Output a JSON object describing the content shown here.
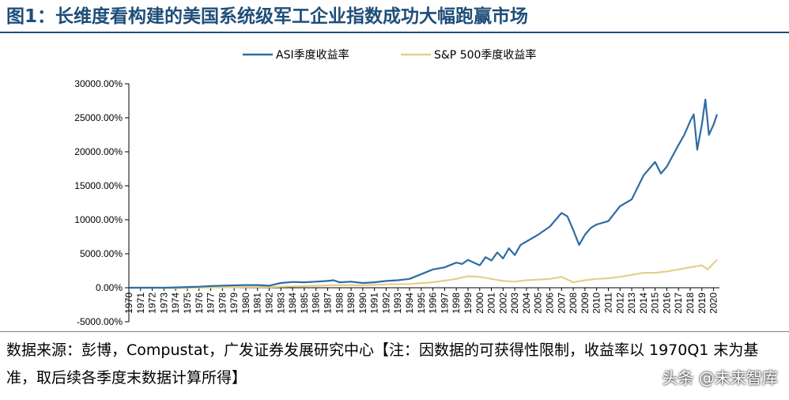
{
  "figure": {
    "title": "图1：长维度看构建的美国系统级军工企业指数成功大幅跑赢市场",
    "source": "数据来源：彭博，Compustat，广发证券发展研究中心【注：因数据的可获得性限制，收益率以 1970Q1 末为基准，取后续各季度末数据计算所得】",
    "watermark": "头条 @未来智库"
  },
  "chart_data": {
    "type": "line",
    "title": "",
    "xlabel": "",
    "ylabel": "",
    "ylim": [
      -5000,
      30000
    ],
    "y_ticks": [
      -5000,
      0,
      5000,
      10000,
      15000,
      20000,
      25000,
      30000
    ],
    "y_tick_labels": [
      "-5000.00%",
      "0.00%",
      "5000.00%",
      "10000.00%",
      "15000.00%",
      "20000.00%",
      "25000.00%",
      "30000.00%"
    ],
    "x_tick_labels": [
      "1970",
      "1971",
      "1972",
      "1973",
      "1974",
      "1975",
      "1976",
      "1977",
      "1978",
      "1979",
      "1980",
      "1981",
      "1982",
      "1983",
      "1984",
      "1985",
      "1986",
      "1987",
      "1988",
      "1989",
      "1990",
      "1991",
      "1992",
      "1993",
      "1994",
      "1995",
      "1996",
      "1997",
      "1998",
      "1999",
      "2000",
      "2001",
      "2002",
      "2003",
      "2004",
      "2005",
      "2006",
      "2007",
      "2008",
      "2009",
      "2010",
      "2011",
      "2012",
      "2013",
      "2014",
      "2015",
      "2016",
      "2017",
      "2018",
      "2019",
      "2020"
    ],
    "xlim": [
      1970,
      2020.5
    ],
    "grid": false,
    "legend_position": "top-center",
    "series": [
      {
        "name": "ASI季度收益率",
        "color": "#2e6ca4",
        "x": [
          1970,
          1971,
          1972,
          1973,
          1974,
          1975,
          1976,
          1977,
          1978,
          1979,
          1980,
          1981,
          1982,
          1982.5,
          1983,
          1984,
          1985,
          1986,
          1987,
          1987.5,
          1988,
          1989,
          1990,
          1991,
          1992,
          1993,
          1994,
          1995,
          1996,
          1997,
          1998,
          1998.5,
          1999,
          1999.5,
          2000,
          2000.5,
          2001,
          2001.5,
          2002,
          2002.5,
          2003,
          2003.5,
          2004,
          2005,
          2006,
          2007,
          2007.5,
          2008,
          2008.5,
          2009,
          2009.5,
          2010,
          2011,
          2012,
          2013,
          2014,
          2014.5,
          2015,
          2015.5,
          2016,
          2017,
          2017.5,
          2018,
          2018.3,
          2018.6,
          2019,
          2019.3,
          2019.6,
          2020,
          2020.3
        ],
        "values": [
          0,
          0,
          0,
          0,
          50,
          100,
          150,
          250,
          300,
          350,
          400,
          400,
          300,
          500,
          700,
          850,
          800,
          900,
          1000,
          1100,
          800,
          900,
          700,
          800,
          1000,
          1100,
          1300,
          2000,
          2700,
          3000,
          3700,
          3500,
          4100,
          3700,
          3300,
          4500,
          4000,
          5200,
          4300,
          5800,
          4800,
          6300,
          6800,
          7800,
          9000,
          11000,
          10500,
          8500,
          6300,
          7800,
          8800,
          9300,
          9800,
          12000,
          13000,
          16500,
          17500,
          18500,
          16800,
          17800,
          21000,
          22500,
          24500,
          25500,
          20300,
          24000,
          27700,
          22500,
          24000,
          25500
        ]
      },
      {
        "name": "S&P 500季度收益率",
        "color": "#e6cf8a",
        "x": [
          1970,
          1972,
          1974,
          1976,
          1978,
          1980,
          1982,
          1984,
          1986,
          1988,
          1990,
          1992,
          1994,
          1996,
          1998,
          1999,
          2000,
          2001,
          2002,
          2003,
          2004,
          2005,
          2006,
          2007,
          2008,
          2009,
          2010,
          2011,
          2012,
          2013,
          2014,
          2015,
          2016,
          2017,
          2018,
          2019,
          2019.5,
          2020,
          2020.3
        ],
        "values": [
          0,
          20,
          -50,
          20,
          40,
          100,
          100,
          200,
          300,
          400,
          350,
          500,
          550,
          800,
          1300,
          1700,
          1600,
          1300,
          1000,
          900,
          1100,
          1200,
          1300,
          1600,
          800,
          1100,
          1300,
          1400,
          1600,
          1900,
          2200,
          2200,
          2400,
          2700,
          3000,
          3300,
          2700,
          3600,
          4100
        ]
      }
    ]
  }
}
